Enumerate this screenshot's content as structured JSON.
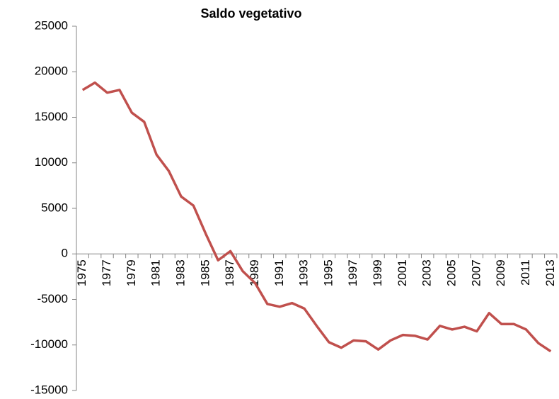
{
  "chart_data": {
    "type": "line",
    "title": "Saldo vegetativo",
    "categories": [
      "1975",
      null,
      "1977",
      null,
      "1979",
      null,
      "1981",
      null,
      "1983",
      null,
      "1985",
      null,
      "1987",
      null,
      "1989",
      null,
      "1991",
      null,
      "1993",
      null,
      "1995",
      null,
      "1997",
      null,
      "1999",
      null,
      "2001",
      null,
      "2003",
      null,
      "2005",
      null,
      "2007",
      null,
      "2009",
      null,
      "2011",
      null,
      "2013"
    ],
    "values": [
      18000,
      18800,
      17700,
      18000,
      15500,
      14500,
      10900,
      9100,
      6300,
      5300,
      2200,
      -700,
      300,
      -1900,
      -3200,
      -5500,
      -5800,
      -5400,
      -6000,
      -7900,
      -9700,
      -10300,
      -9500,
      -9600,
      -10500,
      -9500,
      -8900,
      -9000,
      -9400,
      -7900,
      -8300,
      -8000,
      -8500,
      -6500,
      -7700,
      -7700,
      -8300,
      -9800,
      -10700
    ],
    "color": "#c0504d",
    "ylim": [
      -15000,
      25000
    ],
    "yticks": [
      -15000,
      -10000,
      -5000,
      0,
      5000,
      10000,
      15000,
      20000,
      25000
    ]
  }
}
